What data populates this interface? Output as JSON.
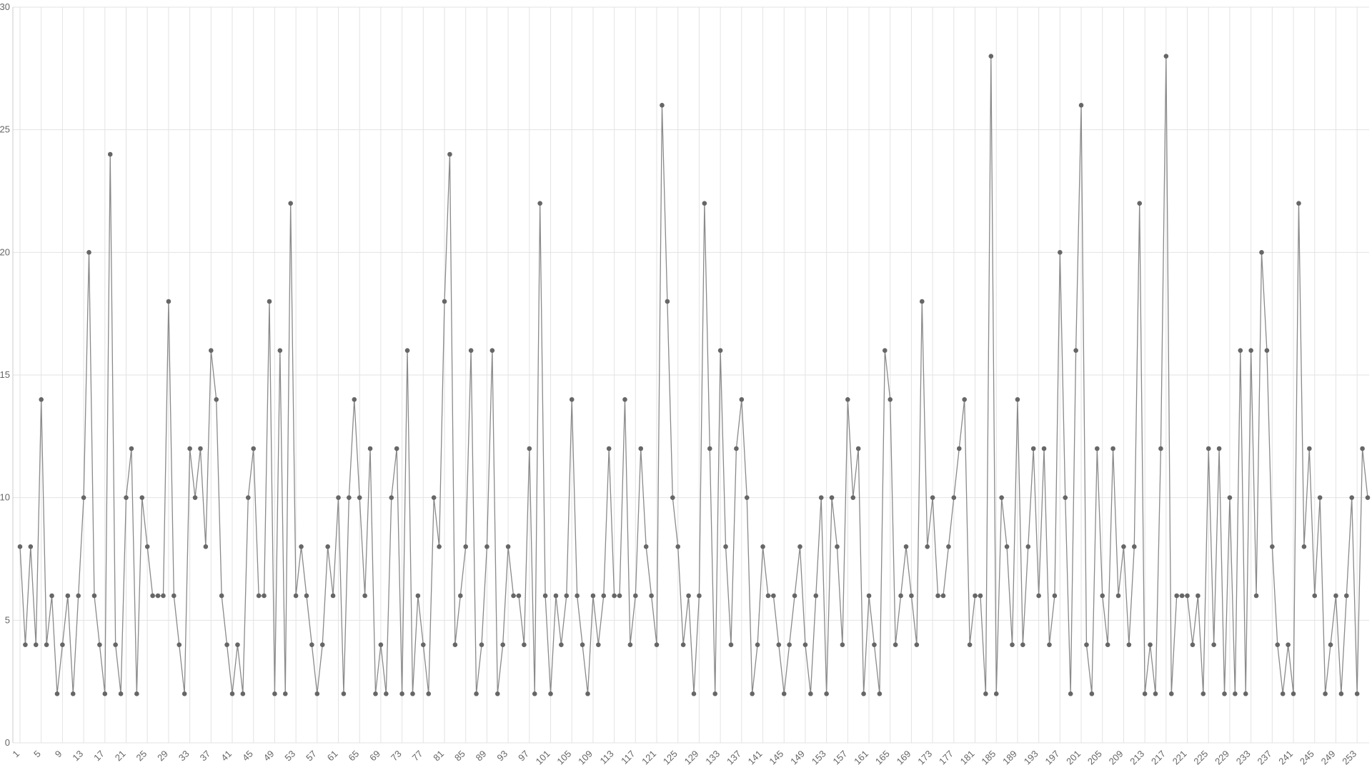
{
  "chart_data": {
    "type": "line",
    "color": "#8a8a8a",
    "marker_color": "#666666",
    "grid": true,
    "categories": [
      "1",
      null,
      null,
      null,
      "5",
      null,
      null,
      null,
      "9",
      null,
      null,
      null,
      "13",
      null,
      null,
      null,
      "17",
      null,
      null,
      null,
      "21",
      null,
      null,
      null,
      "25",
      null,
      null,
      null,
      "29",
      null,
      null,
      null,
      "33",
      null,
      null,
      null,
      "37",
      null,
      null,
      null,
      "41",
      null,
      null,
      null,
      "45",
      null,
      null,
      null,
      "49",
      null,
      null,
      null,
      "53",
      null,
      null,
      null,
      "57",
      null,
      null,
      null,
      "61",
      null,
      null,
      null,
      "65",
      null,
      null,
      null,
      "69",
      null,
      null,
      null,
      "73",
      null,
      null,
      null,
      "77",
      null,
      null,
      null,
      "81",
      null,
      null,
      null,
      "85",
      null,
      null,
      null,
      "89",
      null,
      null,
      null,
      "93",
      null,
      null,
      null,
      "97",
      null,
      null,
      null,
      "101",
      null,
      null,
      null,
      "105",
      null,
      null,
      null,
      "109",
      null,
      null,
      null,
      "113",
      null,
      null,
      null,
      "117",
      null,
      null,
      null,
      "121",
      null,
      null,
      null,
      "125",
      null,
      null,
      null,
      "129",
      null,
      null,
      null,
      "133",
      null,
      null,
      null,
      "137",
      null,
      null,
      null,
      "141",
      null,
      null,
      null,
      "145",
      null,
      null,
      null,
      "149",
      null,
      null,
      null,
      "153",
      null,
      null,
      null,
      "157",
      null,
      null,
      null,
      "161",
      null,
      null,
      null,
      "165",
      null,
      null,
      null,
      "169",
      null,
      null,
      null,
      "173",
      null,
      null,
      null,
      "177",
      null,
      null,
      null,
      "181",
      null,
      null,
      null,
      "185",
      null,
      null,
      null,
      "189",
      null,
      null,
      null,
      "193",
      null,
      null,
      null,
      "197",
      null,
      null,
      null,
      "201",
      null,
      null,
      null,
      "205",
      null,
      null,
      null,
      "209",
      null,
      null,
      null,
      "213",
      null,
      null,
      null,
      "217",
      null,
      null,
      null,
      "221",
      null,
      null,
      null,
      "225",
      null,
      null,
      null,
      "229",
      null,
      null,
      null,
      "233",
      null,
      null,
      null,
      "237",
      null,
      null,
      null,
      "241",
      null,
      null,
      null,
      "245",
      null,
      null,
      null,
      "249",
      null,
      null,
      null,
      "253",
      null,
      null
    ],
    "values": [
      8,
      4,
      8,
      4,
      14,
      4,
      6,
      2,
      4,
      6,
      2,
      6,
      10,
      20,
      6,
      4,
      2,
      24,
      4,
      2,
      10,
      12,
      2,
      10,
      8,
      6,
      6,
      6,
      18,
      6,
      4,
      2,
      12,
      10,
      12,
      8,
      16,
      14,
      6,
      4,
      2,
      4,
      2,
      10,
      12,
      6,
      6,
      18,
      2,
      16,
      2,
      22,
      6,
      8,
      6,
      4,
      2,
      4,
      8,
      6,
      10,
      2,
      10,
      14,
      10,
      6,
      12,
      2,
      4,
      2,
      10,
      12,
      2,
      16,
      2,
      6,
      4,
      2,
      10,
      8,
      18,
      24,
      4,
      6,
      8,
      16,
      2,
      4,
      8,
      16,
      2,
      4,
      8,
      6,
      6,
      4,
      12,
      2,
      22,
      6,
      2,
      6,
      4,
      6,
      14,
      6,
      4,
      2,
      6,
      4,
      6,
      12,
      6,
      6,
      14,
      4,
      6,
      12,
      8,
      6,
      4,
      26,
      18,
      10,
      8,
      4,
      6,
      2,
      6,
      22,
      12,
      2,
      16,
      8,
      4,
      12,
      14,
      10,
      2,
      4,
      8,
      6,
      6,
      4,
      2,
      4,
      6,
      8,
      4,
      2,
      6,
      10,
      2,
      10,
      8,
      4,
      14,
      10,
      12,
      2,
      6,
      4,
      2,
      16,
      14,
      4,
      6,
      8,
      6,
      4,
      18,
      8,
      10,
      6,
      6,
      8,
      10,
      12,
      14,
      4,
      6,
      6,
      2,
      28,
      2,
      10,
      8,
      4,
      14,
      4,
      8,
      12,
      6,
      12,
      4,
      6,
      20,
      10,
      2,
      16,
      26,
      4,
      2,
      12,
      6,
      4,
      12,
      6,
      8,
      4,
      8,
      22,
      2,
      4,
      2,
      12,
      28,
      2,
      6,
      6,
      6,
      4,
      6,
      2,
      12,
      4,
      12,
      2,
      10,
      2,
      16,
      2,
      16,
      6,
      20,
      16,
      8,
      4,
      2,
      4,
      2,
      22,
      8,
      12,
      6,
      10,
      2,
      4,
      6,
      2,
      6,
      10,
      2,
      12,
      10
    ],
    "ylim": [
      0,
      30
    ],
    "yticks": [
      0,
      5,
      10,
      15,
      20,
      25,
      30
    ]
  }
}
